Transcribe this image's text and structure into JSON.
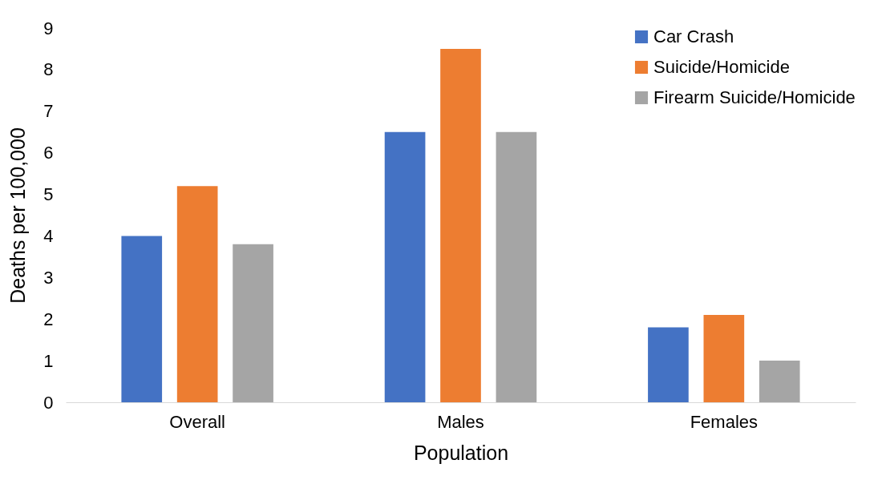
{
  "chart_data": {
    "type": "bar",
    "xlabel": "Population",
    "ylabel": "Deaths per 100,000",
    "categories": [
      "Overall",
      "Males",
      "Females"
    ],
    "series": [
      {
        "name": "Car Crash",
        "color": "#4472c4",
        "values": [
          4.0,
          6.5,
          1.8
        ]
      },
      {
        "name": "Suicide/Homicide",
        "color": "#ed7d31",
        "values": [
          5.2,
          8.5,
          2.1
        ]
      },
      {
        "name": "Firearm Suicide/Homicide",
        "color": "#a5a5a5",
        "values": [
          3.8,
          6.5,
          1.0
        ]
      }
    ],
    "ylim": [
      0,
      9
    ],
    "yticks": [
      0,
      1,
      2,
      3,
      4,
      5,
      6,
      7,
      8,
      9
    ],
    "grid": false,
    "legend": "top right"
  }
}
